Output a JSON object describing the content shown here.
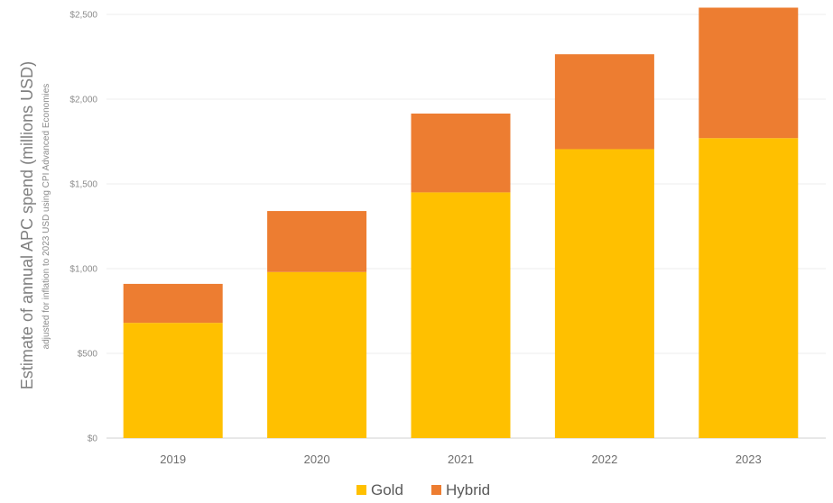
{
  "chart_data": {
    "type": "bar",
    "stacked": true,
    "categories": [
      "2019",
      "2020",
      "2021",
      "2022",
      "2023"
    ],
    "series": [
      {
        "name": "Gold",
        "color": "#FFC000",
        "values": [
          680,
          980,
          1450,
          1705,
          1770
        ]
      },
      {
        "name": "Hybrid",
        "color": "#ED7D31",
        "values": [
          230,
          360,
          465,
          560,
          770
        ]
      }
    ],
    "ylabel": "Estimate of annual APC spend (millions USD)",
    "ysublabel": "adjusted for inflation to 2023 USD using CPI Advanced Economies",
    "yticks": [
      "$0",
      "$500",
      "$1,000",
      "$1,500",
      "$2,000",
      "$2,500"
    ],
    "ytick_values": [
      0,
      500,
      1000,
      1500,
      2000,
      2500
    ],
    "ylim": [
      0,
      2500
    ],
    "grid": true,
    "legend_position": "bottom"
  }
}
